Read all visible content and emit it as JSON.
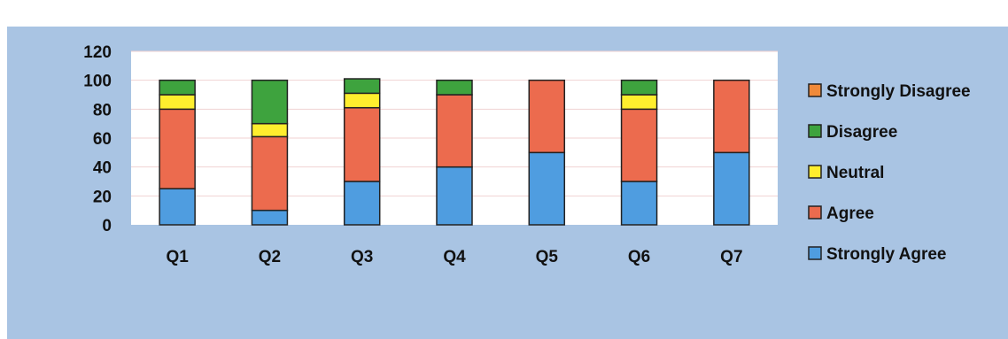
{
  "chart_data": {
    "type": "bar",
    "stacked": true,
    "categories": [
      "Q1",
      "Q2",
      "Q3",
      "Q4",
      "Q5",
      "Q6",
      "Q7"
    ],
    "series": [
      {
        "name": "Strongly Agree",
        "color": "#4f9de0",
        "values": [
          25,
          10,
          30,
          40,
          50,
          30,
          50
        ]
      },
      {
        "name": "Agree",
        "color": "#ec6b4e",
        "values": [
          55,
          51,
          51,
          50,
          50,
          50,
          50
        ]
      },
      {
        "name": "Neutral",
        "color": "#ffee2e",
        "values": [
          10,
          9,
          10,
          0,
          0,
          10,
          0
        ]
      },
      {
        "name": "Disagree",
        "color": "#3ea33e",
        "values": [
          10,
          30,
          10,
          10,
          0,
          10,
          0
        ]
      },
      {
        "name": "Strongly Disagree",
        "color": "#f08a3a",
        "values": [
          0,
          0,
          0,
          0,
          0,
          0,
          0
        ]
      }
    ],
    "ylim": [
      0,
      120
    ],
    "yticks": [
      0,
      20,
      40,
      60,
      80,
      100,
      120
    ],
    "grid": true,
    "legend": "right"
  }
}
